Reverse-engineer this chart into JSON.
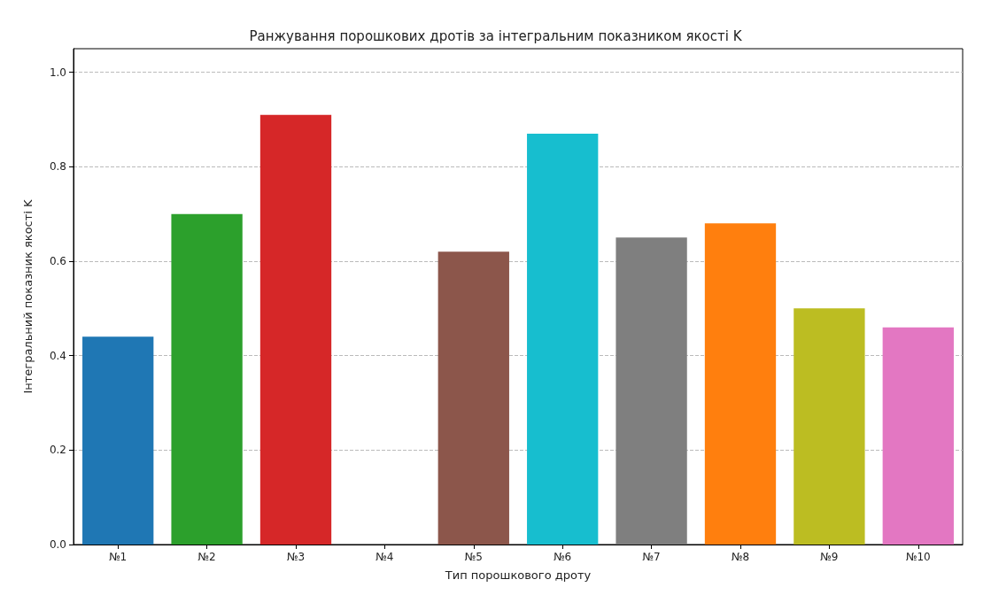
{
  "chart_data": {
    "type": "bar",
    "title": "Ранжування порошкових дротів за інтегральним показником якості K",
    "xlabel": "Тип порошкового дроту",
    "ylabel": "Інтегральний показник якості K",
    "categories": [
      "№1",
      "№2",
      "№3",
      "№4",
      "№5",
      "№6",
      "№7",
      "№8",
      "№9",
      "№10"
    ],
    "values": [
      0.44,
      0.7,
      0.91,
      0,
      0.62,
      0.87,
      0.65,
      0.68,
      0.5,
      0.46
    ],
    "colors": [
      "#1f77b4",
      "#2ca02c",
      "#d62728",
      "#9467bd",
      "#8c564b",
      "#17becf",
      "#7f7f7f",
      "#ff7f0e",
      "#bcbd22",
      "#e377c2"
    ],
    "ylim": [
      0,
      1.05
    ],
    "yticks": [
      {
        "value": 0,
        "label": "0.0"
      },
      {
        "value": 0.2,
        "label": "0.2"
      },
      {
        "value": 0.4,
        "label": "0.4"
      },
      {
        "value": 0.6,
        "label": "0.6"
      },
      {
        "value": 0.8,
        "label": "0.8"
      },
      {
        "value": 1,
        "label": "1.0"
      }
    ],
    "grid": "y"
  }
}
